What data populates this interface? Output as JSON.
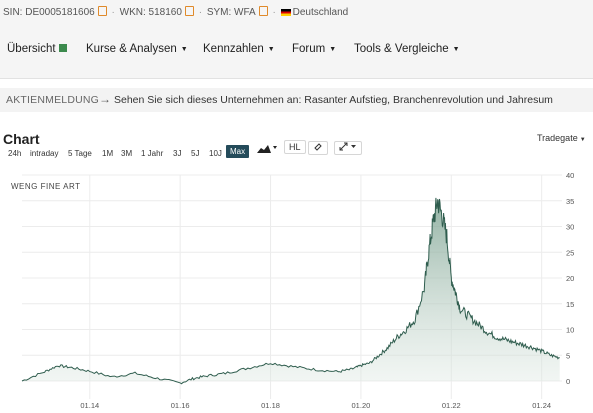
{
  "header": {
    "isin": "SIN: DE0005181606",
    "wkn": "WKN: 518160",
    "sym": "SYM: WFA",
    "country": "Deutschland"
  },
  "nav": {
    "items": [
      {
        "label": "Übersicht"
      },
      {
        "label": "Kurse & Analysen"
      },
      {
        "label": "Kennzahlen"
      },
      {
        "label": "Forum"
      },
      {
        "label": "Tools & Vergleiche"
      }
    ]
  },
  "news": {
    "kicker": "AKTIENMELDUNG",
    "arrow": "→",
    "text": "Sehen Sie sich dieses Unternehmen an: Rasanter Aufstieg, Branchenrevolution und Jahresum"
  },
  "chart_section": {
    "title": "Chart",
    "exchange": "Tradegate",
    "ranges": [
      "24h",
      "intraday",
      "5 Tage",
      "1M",
      "3M",
      "1 Jahr",
      "3J",
      "5J",
      "10J",
      "Max"
    ],
    "active_range": "Max",
    "hl_label": "HL"
  },
  "colors": {
    "accent": "#244b5a",
    "line": "#2f5d4e",
    "area": "#9db8aa",
    "active_green": "#3c8a4d"
  },
  "chart_data": {
    "type": "area",
    "title": "WENG FINE ART",
    "x_tick_labels": [
      "01.14",
      "01.16",
      "01.18",
      "01.20",
      "01.22",
      "01.24"
    ],
    "y_ticks": [
      0,
      5,
      10,
      15,
      20,
      25,
      30,
      35,
      40
    ],
    "ylim": [
      0,
      40
    ],
    "grid": true,
    "x": [
      2012.5,
      2013.0,
      2013.3,
      2013.6,
      2014.0,
      2014.5,
      2015.0,
      2015.5,
      2016.0,
      2016.3,
      2016.6,
      2017.0,
      2017.5,
      2018.0,
      2018.5,
      2019.0,
      2019.5,
      2019.8,
      2020.0,
      2020.2,
      2020.4,
      2020.6,
      2020.8,
      2021.0,
      2021.2,
      2021.4,
      2021.5,
      2021.6,
      2021.7,
      2021.8,
      2021.9,
      2022.0,
      2022.1,
      2022.2,
      2022.4,
      2022.6,
      2022.8,
      2023.0,
      2023.2,
      2023.4,
      2023.6,
      2023.8,
      2024.0,
      2024.2,
      2024.4
    ],
    "y": [
      0.0,
      1.8,
      3.0,
      2.6,
      1.9,
      0.8,
      1.5,
      0.5,
      -0.4,
      0.5,
      1.0,
      1.5,
      2.5,
      3.5,
      2.8,
      2.2,
      1.8,
      2.3,
      3.0,
      3.5,
      5.0,
      6.5,
      8.5,
      10.0,
      12.0,
      18.0,
      25.0,
      31.0,
      35.0,
      32.0,
      28.0,
      20.0,
      17.0,
      14.0,
      12.5,
      11.0,
      9.5,
      8.5,
      8.0,
      7.5,
      7.0,
      6.5,
      5.8,
      5.0,
      4.5
    ]
  }
}
